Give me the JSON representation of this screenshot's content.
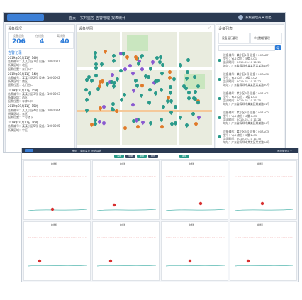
{
  "top": {
    "nav": [
      "首页",
      "实时监控",
      "告警管理",
      "报表统计"
    ],
    "user": "系统管理员 ▾ 退出",
    "stats": {
      "title": "设备概况",
      "items": [
        {
          "value": "206",
          "label": "设备总数"
        },
        {
          "value": "4",
          "label": "在线数"
        },
        {
          "value": "40",
          "label": "离线数"
        }
      ]
    },
    "events_title": "告警记录",
    "events": [
      {
        "time": "2019年01月11日 14时",
        "lines": [
          "告警编号：某某小区1号 设备：1000001",
          "所属区域：北区",
          "报警位置：东门入口"
        ]
      },
      {
        "time": "2019年01月11日 14时",
        "lines": [
          "告警编号：某某小区2号 设备：1000002",
          "所属区域：南区",
          "报警位置：北门出口"
        ]
      },
      {
        "time": "2019年01月11日 15时",
        "lines": [
          "告警编号：某某小区3号 设备：1000003",
          "所属区域：西区",
          "报警位置：车库入口"
        ]
      },
      {
        "time": "2019年01月11日 15时",
        "lines": [
          "告警编号：某某小区4号 设备：1000004",
          "所属区域：东区",
          "报警位置：二号楼下"
        ]
      },
      {
        "time": "2019年01月11日 16时",
        "lines": [
          "告警编号：某某小区5号 设备：1000005",
          "所属区域：中区"
        ]
      }
    ],
    "map_title": "设备地图",
    "list": {
      "title": "设备列表",
      "card_a": "设备运行管理",
      "card_b": "单位数据管理",
      "search_btn": "Q",
      "rows": [
        {
          "id": "1",
          "lines": [
            "设备编号：某小区1号 设备：007ABF",
            "型号：YJ-2 点位：5楼 4-01",
            "监测时间：2019-05-10 11:21",
            "地址：广东省深圳市某某区某某路18号"
          ]
        },
        {
          "id": "2",
          "lines": [
            "设备编号：某小区2号 设备：007AC0",
            "型号：YJ-2 点位：3楼 3-02",
            "监测时间：2019-05-10 11:22",
            "地址：广东省深圳市某某区某某路20号"
          ]
        },
        {
          "id": "3",
          "lines": [
            "设备编号：某小区3号 设备：007AC1",
            "型号：YJ-2 点位：1楼 1-01",
            "监测时间：2019-05-10 11:25",
            "地址：广东省深圳市某某区某某路22号"
          ]
        },
        {
          "id": "4",
          "lines": [
            "设备编号：某小区4号 设备：007AC2",
            "型号：YJ-2 点位：6楼 6-03",
            "监测时间：2019-05-10 11:28",
            "地址：广东省深圳市某某区某某路24号"
          ]
        },
        {
          "id": "5",
          "lines": [
            "设备编号：某小区5号 设备：007AC3",
            "型号：YJ-2 点位：2楼 2-05",
            "监测时间：2019-05-10 11:30",
            "地址：广东省深圳市某某区某某路26号"
          ]
        }
      ]
    }
  },
  "bottom": {
    "nav": [
      "首页",
      "实时监控",
      "历史曲线"
    ],
    "user": "系统管理员 ▾",
    "tabs": [
      "温度",
      "湿度",
      "电流",
      "电压",
      "漏电"
    ],
    "chart_titles": [
      "曲线图",
      "曲线图",
      "曲线图",
      "曲线图",
      "曲线图",
      "曲线图",
      "曲线图",
      "曲线图"
    ]
  },
  "colors": {
    "nav": "#2b3a52",
    "accent": "#2a7ad8",
    "teal": "#2a9a8a",
    "alarm": "#d83030"
  }
}
